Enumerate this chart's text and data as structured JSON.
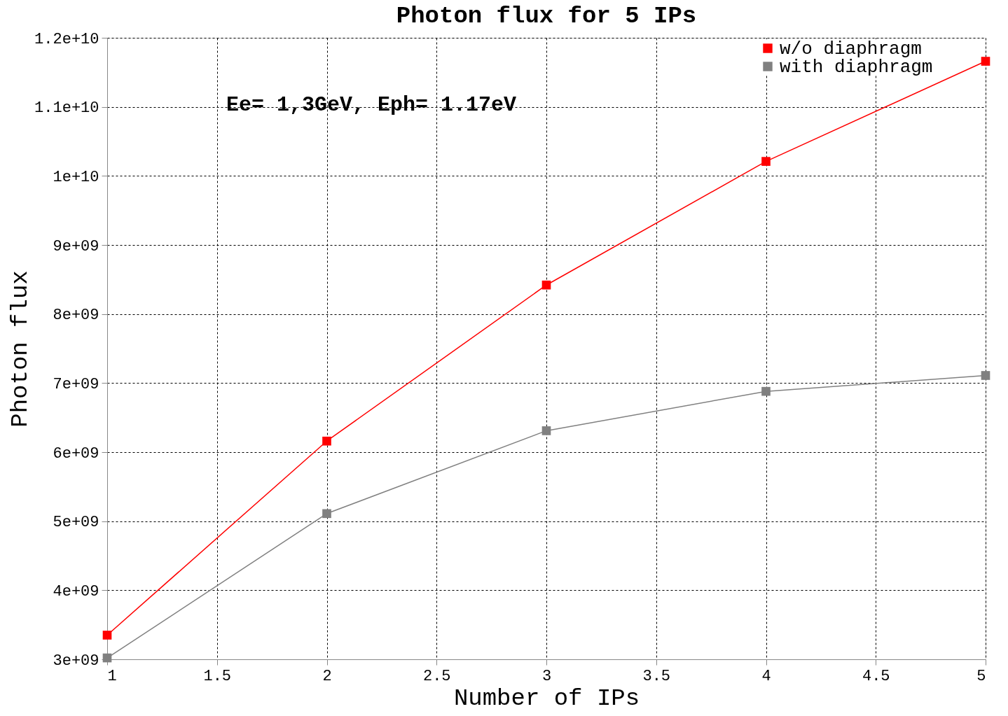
{
  "chart_data": {
    "type": "line",
    "title": "Photon flux for 5 IPs",
    "xlabel": "Number of IPs",
    "ylabel": "Photon flux",
    "x": [
      1,
      2,
      3,
      4,
      5
    ],
    "series": [
      {
        "name": "w/o diaphragm",
        "color": "#ff0000",
        "values": [
          3350000000.0,
          6160000000.0,
          8420000000.0,
          10210000000.0,
          11660000000.0
        ]
      },
      {
        "name": "with diaphragm",
        "color": "#808080",
        "values": [
          3020000000.0,
          5110000000.0,
          6310000000.0,
          6880000000.0,
          7110000000.0
        ]
      }
    ],
    "xlim": [
      1,
      5
    ],
    "xticks": [
      1,
      1.5,
      2,
      2.5,
      3,
      3.5,
      4,
      4.5,
      5
    ],
    "ylim": [
      3000000000.0,
      12000000000.0
    ],
    "yticks": [
      {
        "value": 3000000000.0,
        "label": "3e+09"
      },
      {
        "value": 4000000000.0,
        "label": "4e+09"
      },
      {
        "value": 5000000000.0,
        "label": "5e+09"
      },
      {
        "value": 6000000000.0,
        "label": "6e+09"
      },
      {
        "value": 7000000000.0,
        "label": "7e+09"
      },
      {
        "value": 8000000000.0,
        "label": "8e+09"
      },
      {
        "value": 9000000000.0,
        "label": "9e+09"
      },
      {
        "value": 10000000000.0,
        "label": "1e+10"
      },
      {
        "value": 11000000000.0,
        "label": "1.1e+10"
      },
      {
        "value": 12000000000.0,
        "label": "1.2e+10"
      }
    ],
    "annotations": [
      "Ee= 1,3GeV, Eph= 1.17eV"
    ],
    "grid": true,
    "legend": "top right",
    "marker": "square",
    "line_style": "solid"
  }
}
